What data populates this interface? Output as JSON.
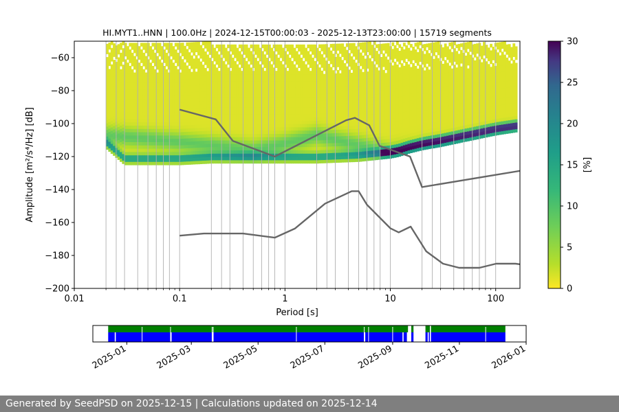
{
  "chart_data": {
    "type": "heatmap",
    "title": "HI.MYT1..HNN | 100.0Hz | 2024-12-15T00:00:03 - 2025-12-13T23:00:00 | 15719 segments",
    "xlabel": "Period [s]",
    "ylabel": "Amplitude [m²/s⁴/Hz] [dB]",
    "x_scale": "log",
    "xlim": [
      0.01,
      170
    ],
    "ylim": [
      -200,
      -50
    ],
    "x_ticks": [
      0.01,
      0.1,
      1,
      10,
      100
    ],
    "x_tick_labels": [
      "0.01",
      "0.1",
      "1",
      "10",
      "100"
    ],
    "y_ticks": [
      -200,
      -180,
      -160,
      -140,
      -120,
      -100,
      -80,
      -60
    ],
    "y_tick_labels": [
      "−200",
      "−180",
      "−160",
      "−140",
      "−120",
      "−100",
      "−80",
      "−60"
    ],
    "grid_periods": [
      0.02,
      0.025,
      0.03,
      0.04,
      0.05,
      0.06,
      0.07,
      0.08,
      0.1,
      0.2,
      0.25,
      0.3,
      0.4,
      0.5,
      0.6,
      0.7,
      0.8,
      1,
      2,
      2.5,
      3,
      4,
      5,
      6,
      7,
      8,
      10,
      20,
      25,
      30,
      40,
      50,
      60,
      70,
      80,
      100
    ],
    "colorbar": {
      "label": "[%]",
      "min": 0,
      "max": 30,
      "ticks": [
        0,
        5,
        10,
        15,
        20,
        25,
        30
      ],
      "colormap": "viridis_r"
    },
    "density_ridges": [
      {
        "period": [
          0.02,
          0.03,
          0.05,
          0.1,
          0.2,
          0.5,
          1,
          2,
          5,
          10,
          12,
          15,
          20,
          30,
          50,
          100,
          160
        ],
        "amplitude": [
          -112,
          -122,
          -122,
          -122,
          -121,
          -121,
          -121,
          -121,
          -120,
          -118,
          -117,
          -115,
          -113,
          -111,
          -108,
          -104,
          -102
        ],
        "percent": 12
      },
      {
        "period": [
          0.02,
          0.05,
          0.1,
          0.2,
          0.5,
          1,
          2,
          5,
          10,
          20,
          50,
          100,
          160
        ],
        "amplitude": [
          -108,
          -110,
          -112,
          -114,
          -117,
          -113,
          -108,
          -114,
          -119,
          -116,
          -113,
          -110,
          -109
        ],
        "percent": 6
      }
    ],
    "series": [
      {
        "name": "",
        "color": "#666666",
        "x": [
          0.1,
          0.22,
          0.32,
          0.8,
          3.8,
          4.6,
          6.3,
          7.9,
          15.4,
          20,
          176
        ],
        "y": [
          -91.5,
          -97.4,
          -110.5,
          -120,
          -98,
          -96.5,
          -101,
          -113.5,
          -120,
          -138.5,
          -128.5
        ]
      },
      {
        "name": "",
        "color": "#666666",
        "x": [
          0.1,
          0.17,
          0.4,
          0.8,
          1.24,
          2.4,
          4.3,
          5.0,
          6.0,
          10,
          12,
          15.6,
          21.9,
          31.6,
          45,
          70,
          101,
          154,
          176
        ],
        "y": [
          -168,
          -166.7,
          -166.7,
          -169.2,
          -163.7,
          -148.6,
          -141,
          -141,
          -149.2,
          -163.5,
          -166,
          -162.5,
          -177.5,
          -185,
          -187.5,
          -187.5,
          -185,
          -185,
          -185.5
        ]
      }
    ]
  },
  "timeline": {
    "tick_labels": [
      "2025-01",
      "2025-03",
      "2025-05",
      "2025-07",
      "2025-09",
      "2025-11",
      "2026-01"
    ],
    "tick_dates": [
      "2025-01-01",
      "2025-03-01",
      "2025-05-01",
      "2025-07-01",
      "2025-09-01",
      "2025-11-01",
      "2026-01-01"
    ],
    "range": [
      "2024-12-01",
      "2026-01-01"
    ],
    "top_color": "#007f00",
    "bottom_color": "#0000ff",
    "top_coverage": [
      [
        "2024-12-15",
        "2025-09-15"
      ],
      [
        "2025-09-18",
        "2025-09-20"
      ],
      [
        "2025-10-01",
        "2025-10-05"
      ],
      [
        "2025-10-06",
        "2025-12-13"
      ]
    ],
    "bottom_coverage": [
      [
        "2024-12-15",
        "2024-12-21"
      ],
      [
        "2024-12-22",
        "2025-02-10"
      ],
      [
        "2025-02-11",
        "2025-03-20"
      ],
      [
        "2025-03-21",
        "2025-08-06"
      ],
      [
        "2025-08-07",
        "2025-09-10"
      ],
      [
        "2025-09-11",
        "2025-09-14"
      ],
      [
        "2025-09-18",
        "2025-09-20"
      ],
      [
        "2025-10-01",
        "2025-10-03"
      ],
      [
        "2025-10-04",
        "2025-10-05"
      ],
      [
        "2025-10-06",
        "2025-12-13"
      ]
    ],
    "gaps": [
      "2025-01-15",
      "2025-02-10",
      "2025-03-20",
      "2025-03-21",
      "2025-06-05",
      "2025-08-06",
      "2025-08-10",
      "2025-09-01",
      "2025-11-25"
    ]
  },
  "footer": {
    "text": "Generated by SeedPSD on 2025-12-15 | Calculations updated on 2025-12-14"
  }
}
